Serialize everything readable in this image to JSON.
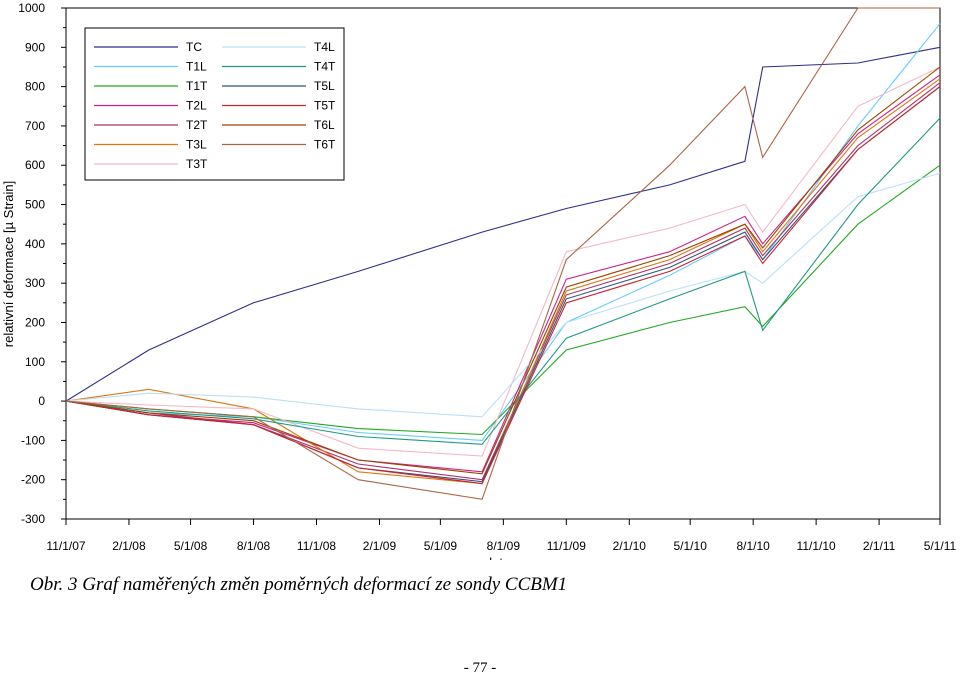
{
  "chart_data": {
    "type": "line",
    "title": "",
    "xlabel": "datum",
    "ylabel": "relativní deformace [µ Strain]",
    "ylim": [
      -300,
      1000
    ],
    "xlim": [
      "2007-11-01",
      "2011-05-01"
    ],
    "x_ticks": [
      "11/1/07",
      "2/1/08",
      "5/1/08",
      "8/1/08",
      "11/1/08",
      "2/1/09",
      "5/1/09",
      "8/1/09",
      "11/1/09",
      "2/1/10",
      "5/1/10",
      "8/1/10",
      "11/1/10",
      "2/1/11",
      "5/1/11"
    ],
    "y_ticks": [
      1000,
      900,
      800,
      700,
      600,
      500,
      400,
      300,
      200,
      100,
      0,
      -100,
      -200,
      -300
    ],
    "grid": false,
    "legend_position": "top-left",
    "legend_columns": 2,
    "series": [
      {
        "name": "TC",
        "color": "#2e2e8c",
        "x": [
          "2007-11-01",
          "2008-03-01",
          "2008-08-01",
          "2009-01-01",
          "2009-07-01",
          "2009-11-01",
          "2010-04-01",
          "2010-07-20",
          "2010-08-15",
          "2011-01-01",
          "2011-05-01"
        ],
        "y": [
          0,
          130,
          250,
          330,
          430,
          490,
          550,
          610,
          850,
          860,
          900
        ]
      },
      {
        "name": "T1L",
        "color": "#66ccff",
        "x": [
          "2007-11-01",
          "2008-03-01",
          "2008-08-01",
          "2009-01-01",
          "2009-07-01",
          "2009-11-01",
          "2010-04-01",
          "2010-07-20",
          "2010-08-15",
          "2011-01-01",
          "2011-05-01"
        ],
        "y": [
          0,
          -30,
          -40,
          -80,
          -100,
          200,
          320,
          420,
          360,
          700,
          960
        ]
      },
      {
        "name": "T1T",
        "color": "#22aa22",
        "x": [
          "2007-11-01",
          "2008-03-01",
          "2008-08-01",
          "2009-01-01",
          "2009-07-01",
          "2009-11-01",
          "2010-04-01",
          "2010-07-20",
          "2010-08-15",
          "2011-01-01",
          "2011-05-01"
        ],
        "y": [
          0,
          -20,
          -40,
          -70,
          -85,
          130,
          200,
          240,
          190,
          450,
          600
        ]
      },
      {
        "name": "T2L",
        "color": "#cc2288",
        "x": [
          "2007-11-01",
          "2008-03-01",
          "2008-08-01",
          "2009-01-01",
          "2009-07-01",
          "2009-11-01",
          "2010-04-01",
          "2010-07-20",
          "2010-08-15",
          "2011-01-01",
          "2011-05-01"
        ],
        "y": [
          0,
          -35,
          -55,
          -150,
          -180,
          310,
          380,
          470,
          400,
          680,
          830
        ]
      },
      {
        "name": "T2T",
        "color": "#aa3366",
        "x": [
          "2007-11-01",
          "2008-03-01",
          "2008-08-01",
          "2009-01-01",
          "2009-07-01",
          "2009-11-01",
          "2010-04-01",
          "2010-07-20",
          "2010-08-15",
          "2011-01-01",
          "2011-05-01"
        ],
        "y": [
          0,
          -30,
          -60,
          -160,
          -200,
          270,
          350,
          440,
          370,
          650,
          810
        ]
      },
      {
        "name": "T3L",
        "color": "#dd7711",
        "x": [
          "2007-11-01",
          "2008-03-01",
          "2008-08-01",
          "2009-01-01",
          "2009-07-01",
          "2009-11-01",
          "2010-04-01",
          "2010-07-20",
          "2010-08-15",
          "2011-01-01",
          "2011-05-01"
        ],
        "y": [
          0,
          30,
          -20,
          -180,
          -210,
          280,
          360,
          450,
          380,
          670,
          820
        ]
      },
      {
        "name": "T3T",
        "color": "#f4b8c8",
        "x": [
          "2007-11-01",
          "2008-03-01",
          "2008-08-01",
          "2009-01-01",
          "2009-07-01",
          "2009-11-01",
          "2010-04-01",
          "2010-07-20",
          "2010-08-15",
          "2011-01-01",
          "2011-05-01"
        ],
        "y": [
          0,
          -10,
          -20,
          -120,
          -140,
          380,
          440,
          500,
          430,
          750,
          850
        ]
      },
      {
        "name": "T4L",
        "color": "#bbe0f4",
        "x": [
          "2007-11-01",
          "2008-03-01",
          "2008-08-01",
          "2009-01-01",
          "2009-07-01",
          "2009-11-01",
          "2010-04-01",
          "2010-07-20",
          "2010-08-15",
          "2011-01-01",
          "2011-05-01"
        ],
        "y": [
          0,
          20,
          10,
          -20,
          -40,
          200,
          280,
          330,
          300,
          520,
          580
        ]
      },
      {
        "name": "T4T",
        "color": "#229988",
        "x": [
          "2007-11-01",
          "2008-03-01",
          "2008-08-01",
          "2009-01-01",
          "2009-07-01",
          "2009-11-01",
          "2010-04-01",
          "2010-07-20",
          "2010-08-15",
          "2011-01-01",
          "2011-05-01"
        ],
        "y": [
          0,
          -25,
          -45,
          -90,
          -110,
          160,
          260,
          330,
          180,
          500,
          720
        ]
      },
      {
        "name": "T5L",
        "color": "#335577",
        "x": [
          "2007-11-01",
          "2008-03-01",
          "2008-08-01",
          "2009-01-01",
          "2009-07-01",
          "2009-11-01",
          "2010-04-01",
          "2010-07-20",
          "2010-08-15",
          "2011-01-01",
          "2011-05-01"
        ],
        "y": [
          0,
          -35,
          -60,
          -170,
          -205,
          260,
          340,
          430,
          360,
          640,
          800
        ]
      },
      {
        "name": "T5T",
        "color": "#cc2233",
        "x": [
          "2007-11-01",
          "2008-03-01",
          "2008-08-01",
          "2009-01-01",
          "2009-07-01",
          "2009-11-01",
          "2010-04-01",
          "2010-07-20",
          "2010-08-15",
          "2011-01-01",
          "2011-05-01"
        ],
        "y": [
          0,
          -35,
          -60,
          -170,
          -210,
          250,
          330,
          420,
          350,
          640,
          800
        ]
      },
      {
        "name": "T6L",
        "color": "#994400",
        "x": [
          "2007-11-01",
          "2008-03-01",
          "2008-08-01",
          "2009-01-01",
          "2009-07-01",
          "2009-11-01",
          "2010-04-01",
          "2010-07-20",
          "2010-08-15",
          "2011-01-01",
          "2011-05-01"
        ],
        "y": [
          0,
          -30,
          -50,
          -150,
          -185,
          290,
          370,
          450,
          390,
          690,
          850
        ]
      },
      {
        "name": "T6T",
        "color": "#aa6644",
        "x": [
          "2007-11-01",
          "2008-03-01",
          "2008-08-01",
          "2009-01-01",
          "2009-07-01",
          "2009-11-01",
          "2010-04-01",
          "2010-07-20",
          "2010-08-15",
          "2011-01-01",
          "2011-05-01"
        ],
        "y": [
          0,
          -20,
          -40,
          -200,
          -250,
          360,
          600,
          800,
          620,
          1000,
          1000
        ]
      }
    ]
  },
  "caption": "Obr. 3 Graf naměřených změn poměrných deformací ze sondy CCBM1",
  "page_number": "- 77 -"
}
